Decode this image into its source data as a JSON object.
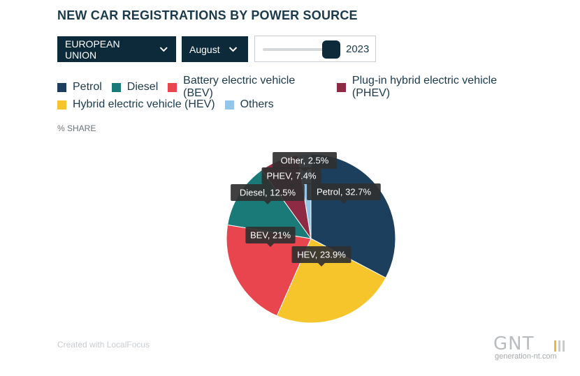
{
  "header": {
    "title": "NEW CAR REGISTRATIONS BY POWER SOURCE"
  },
  "controls": {
    "region_label": "EUROPEAN UNION",
    "month_label": "August",
    "year_label": "2023",
    "year_slider_position": 1.0
  },
  "unit_label": "% SHARE",
  "legend": [
    {
      "label": "Petrol",
      "color": "#1c3f5d"
    },
    {
      "label": "Diesel",
      "color": "#1a7a78"
    },
    {
      "label": "Battery electric vehicle (BEV)",
      "color": "#e8454f"
    },
    {
      "label": "Plug-in hybrid electric vehicle (PHEV)",
      "color": "#8f2a44"
    },
    {
      "label": "Hybrid electric vehicle (HEV)",
      "color": "#f6c42b"
    },
    {
      "label": "Others",
      "color": "#93c6e8"
    }
  ],
  "chart_data": {
    "type": "pie",
    "title": "NEW CAR REGISTRATIONS BY POWER SOURCE",
    "unit": "% SHARE",
    "slices": [
      {
        "name": "Petrol",
        "value": 32.7,
        "label": "Petrol, 32.7%",
        "color": "#1c3f5d"
      },
      {
        "name": "HEV",
        "value": 23.9,
        "label": "HEV, 23.9%",
        "color": "#f6c42b"
      },
      {
        "name": "BEV",
        "value": 21,
        "label": "BEV, 21%",
        "color": "#e8454f"
      },
      {
        "name": "Diesel",
        "value": 12.5,
        "label": "Diesel, 12.5%",
        "color": "#1a7a78"
      },
      {
        "name": "PHEV",
        "value": 7.4,
        "label": "PHEV, 7.4%",
        "color": "#8f2a44"
      },
      {
        "name": "Other",
        "value": 2.5,
        "label": "Other, 2.5%",
        "color": "#93c6e8"
      }
    ]
  },
  "footer": {
    "credit": "Created with LocalFocus"
  },
  "watermark": {
    "logo": "GNT",
    "url": "generation-nt.com"
  }
}
